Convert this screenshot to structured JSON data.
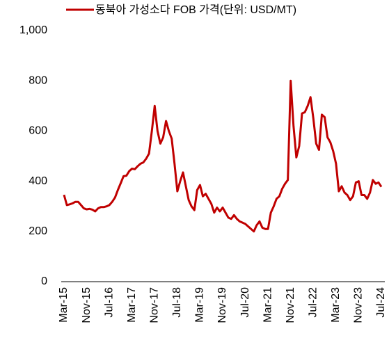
{
  "chart_data": {
    "type": "line",
    "categories": [
      "Mar-15",
      null,
      null,
      null,
      null,
      null,
      null,
      null,
      "Nov-15",
      null,
      null,
      null,
      null,
      null,
      null,
      null,
      "Jul-16",
      null,
      null,
      null,
      null,
      null,
      null,
      null,
      "Mar-17",
      null,
      null,
      null,
      null,
      null,
      null,
      null,
      "Nov-17",
      null,
      null,
      null,
      null,
      null,
      null,
      null,
      "Jul-18",
      null,
      null,
      null,
      null,
      null,
      null,
      null,
      "Mar-19",
      null,
      null,
      null,
      null,
      null,
      null,
      null,
      "Nov-19",
      null,
      null,
      null,
      null,
      null,
      null,
      null,
      "Jul-20",
      null,
      null,
      null,
      null,
      null,
      null,
      null,
      "Mar-21",
      null,
      null,
      null,
      null,
      null,
      null,
      null,
      "Nov-21",
      null,
      null,
      null,
      null,
      null,
      null,
      null,
      "Jul-22",
      null,
      null,
      null,
      null,
      null,
      null,
      null,
      "Mar-23",
      null,
      null,
      null,
      null,
      null,
      null,
      null,
      "Nov-23",
      null,
      null,
      null,
      null,
      null,
      null,
      null,
      "Jul-24"
    ],
    "series": [
      {
        "name": "동북아 가성소다 FOB 가격(단위: USD/MT)",
        "color": "#c00000",
        "values": [
          346,
          305,
          308,
          312,
          318,
          318,
          305,
          292,
          288,
          290,
          287,
          280,
          292,
          297,
          297,
          300,
          305,
          318,
          335,
          365,
          392,
          420,
          422,
          440,
          450,
          448,
          460,
          470,
          475,
          490,
          510,
          600,
          700,
          600,
          550,
          575,
          640,
          600,
          570,
          470,
          360,
          400,
          435,
          380,
          325,
          300,
          285,
          365,
          385,
          340,
          350,
          330,
          310,
          275,
          295,
          280,
          295,
          275,
          255,
          250,
          265,
          250,
          240,
          235,
          230,
          220,
          210,
          200,
          225,
          240,
          215,
          210,
          210,
          275,
          300,
          330,
          340,
          370,
          390,
          405,
          800,
          620,
          495,
          540,
          670,
          675,
          700,
          735,
          650,
          550,
          525,
          665,
          655,
          575,
          555,
          520,
          470,
          360,
          380,
          355,
          345,
          325,
          340,
          395,
          400,
          345,
          345,
          330,
          355,
          405,
          390,
          395,
          378
        ]
      }
    ],
    "ylim": [
      0,
      1000
    ],
    "yticks": [
      0,
      200,
      400,
      600,
      800,
      {
        "value": 1000,
        "label": "1,000"
      }
    ],
    "grid": false,
    "legend": "top"
  }
}
